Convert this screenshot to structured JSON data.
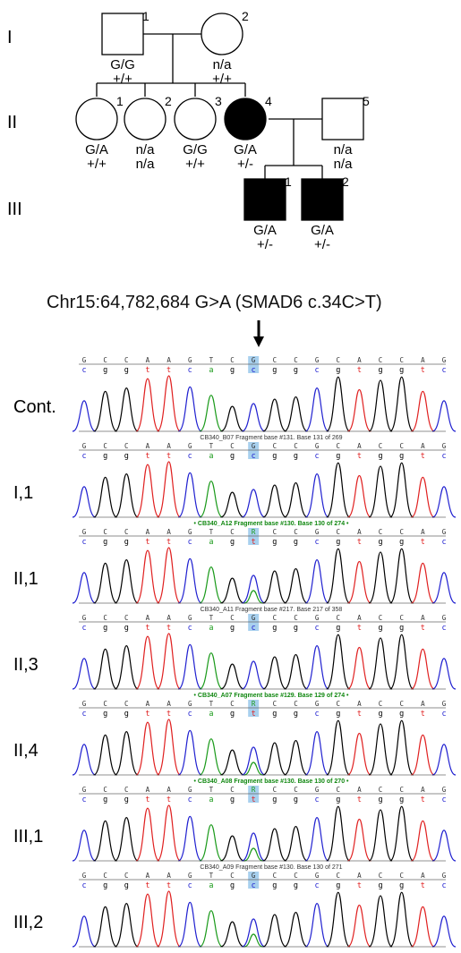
{
  "pedigree": {
    "generations": [
      "I",
      "II",
      "III"
    ],
    "members": [
      {
        "id": "I-1",
        "number": "1",
        "sex": "male",
        "affected": false,
        "genotype": "G/G",
        "status": "+/+"
      },
      {
        "id": "I-2",
        "number": "2",
        "sex": "female",
        "affected": false,
        "genotype": "n/a",
        "status": "+/+"
      },
      {
        "id": "II-1",
        "number": "1",
        "sex": "female",
        "affected": false,
        "genotype": "G/A",
        "status": "+/+"
      },
      {
        "id": "II-2",
        "number": "2",
        "sex": "female",
        "affected": false,
        "genotype": "n/a",
        "status": "n/a"
      },
      {
        "id": "II-3",
        "number": "3",
        "sex": "female",
        "affected": false,
        "genotype": "G/G",
        "status": "+/+"
      },
      {
        "id": "II-4",
        "number": "4",
        "sex": "female",
        "affected": true,
        "genotype": "G/A",
        "status": "+/-"
      },
      {
        "id": "II-5",
        "number": "5",
        "sex": "male",
        "affected": false,
        "genotype": "n/a",
        "status": "n/a"
      },
      {
        "id": "III-1",
        "number": "1",
        "sex": "male",
        "affected": true,
        "genotype": "G/A",
        "status": "+/-"
      },
      {
        "id": "III-2",
        "number": "2",
        "sex": "male",
        "affected": true,
        "genotype": "G/A",
        "status": "+/-"
      }
    ]
  },
  "variant_title": "Chr15:64,782,684 G>A (SMAD6 c.34C>T)",
  "chromatograms": {
    "called_upper": [
      "G",
      "C",
      "C",
      "A",
      "A",
      "G",
      "T",
      "C",
      "G",
      "C",
      "C",
      "G",
      "C",
      "A",
      "C",
      "C",
      "A",
      "G"
    ],
    "called_lower": [
      "c",
      "g",
      "g",
      "t",
      "t",
      "c",
      "a",
      "g",
      "c",
      "g",
      "g",
      "c",
      "g",
      "t",
      "g",
      "g",
      "t",
      "c"
    ],
    "highlight_index": 8,
    "colors": {
      "A": "#1a9a1a",
      "C": "#2020d0",
      "G": "#000000",
      "T": "#e02020",
      "highlight": "#a8d0ee",
      "info_green": "#118811"
    },
    "samples": [
      {
        "label": "Cont.",
        "top_base": "G",
        "lower_base": "c",
        "info": "",
        "info_green": false,
        "secondary_peak": false
      },
      {
        "label": "I,1",
        "top_base": "G",
        "lower_base": "c",
        "info": "CB340_B07 Fragment base #131. Base 131 of 269",
        "info_green": false,
        "secondary_peak": false
      },
      {
        "label": "II,1",
        "top_base": "R",
        "lower_base": "t",
        "info": "• CB340_A12 Fragment base #130. Base 130 of 274 •",
        "info_green": true,
        "secondary_peak": true
      },
      {
        "label": "II,3",
        "top_base": "G",
        "lower_base": "c",
        "info": "CB340_A11 Fragment base #217. Base 217 of 358",
        "info_green": false,
        "secondary_peak": false
      },
      {
        "label": "II,4",
        "top_base": "R",
        "lower_base": "t",
        "info": "• CB340_A07 Fragment base #129. Base 129 of 274 •",
        "info_green": true,
        "secondary_peak": true
      },
      {
        "label": "III,1",
        "top_base": "R",
        "lower_base": "t",
        "info": "• CB340_A08 Fragment base #130. Base 130 of 270 •",
        "info_green": true,
        "secondary_peak": true
      },
      {
        "label": "III,2",
        "top_base": "G",
        "lower_base": "c",
        "info": "CB340_A09 Fragment base #130. Base 130 of 271",
        "info_green": false,
        "secondary_peak": true
      }
    ]
  }
}
